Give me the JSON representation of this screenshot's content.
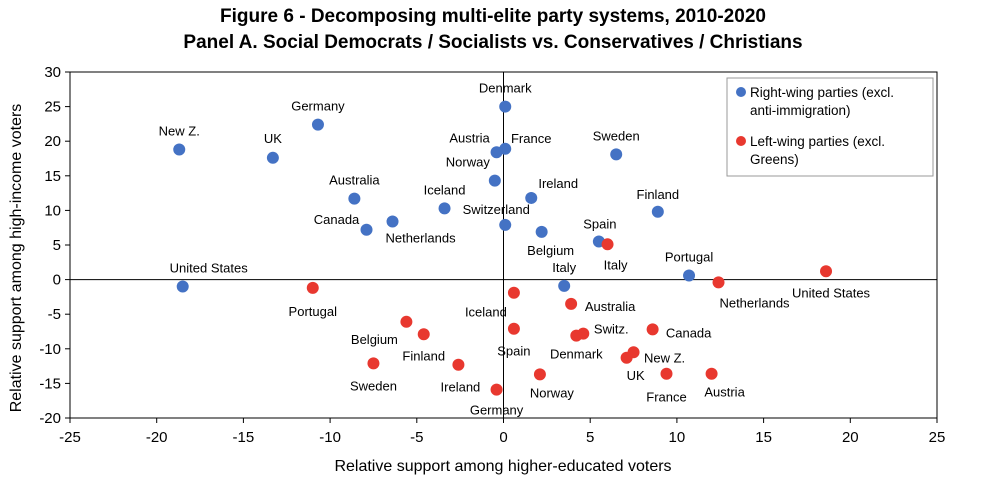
{
  "chart_data": {
    "type": "scatter",
    "title": "Figure 6 - Decomposing multi-elite party systems, 2010-2020",
    "subtitle": "Panel A. Social Democrats / Socialists vs. Conservatives / Christians",
    "xlabel": "Relative support among higher-educated voters",
    "ylabel": "Relative support among high-income voters",
    "xlim": [
      -25,
      25
    ],
    "ylim": [
      -20,
      30
    ],
    "xticks": [
      -25,
      -20,
      -15,
      -10,
      -5,
      0,
      5,
      10,
      15,
      20,
      25
    ],
    "yticks": [
      -20,
      -15,
      -10,
      -5,
      0,
      5,
      10,
      15,
      20,
      25,
      30
    ],
    "grid": false,
    "legend_position": "top-right",
    "series": [
      {
        "name": "Right-wing parties (excl. anti-immigration)",
        "legend_lines": [
          "Right-wing parties (excl.",
          "anti-immigration)"
        ],
        "color": "#4472C4",
        "points": [
          {
            "label": "New Z.",
            "x": -18.7,
            "y": 18.8
          },
          {
            "label": "UK",
            "x": -13.3,
            "y": 17.6
          },
          {
            "label": "Germany",
            "x": -10.7,
            "y": 22.4
          },
          {
            "label": "Australia",
            "x": -8.6,
            "y": 11.7
          },
          {
            "label": "Canada",
            "x": -7.9,
            "y": 7.2
          },
          {
            "label": "Netherlands",
            "x": -6.4,
            "y": 8.4
          },
          {
            "label": "Iceland",
            "x": -3.4,
            "y": 10.3
          },
          {
            "label": "Switzerland",
            "x": 0.1,
            "y": 7.9
          },
          {
            "label": "Norway",
            "x": -0.5,
            "y": 14.3
          },
          {
            "label": "Austria",
            "x": -0.4,
            "y": 18.4
          },
          {
            "label": "France",
            "x": 0.1,
            "y": 18.9
          },
          {
            "label": "Denmark",
            "x": 0.1,
            "y": 25.0
          },
          {
            "label": "Ireland",
            "x": 1.6,
            "y": 11.8
          },
          {
            "label": "Belgium",
            "x": 2.2,
            "y": 6.9
          },
          {
            "label": "Spain",
            "x": 5.5,
            "y": 5.5
          },
          {
            "label": "Sweden",
            "x": 6.5,
            "y": 18.1
          },
          {
            "label": "Finland",
            "x": 8.9,
            "y": 9.8
          },
          {
            "label": "Italy",
            "x": 3.5,
            "y": -0.9
          },
          {
            "label": "Portugal",
            "x": 10.7,
            "y": 0.6
          },
          {
            "label": "United States",
            "x": -18.5,
            "y": -1.0
          }
        ]
      },
      {
        "name": "Left-wing parties (excl. Greens)",
        "legend_lines": [
          "Left-wing parties (excl.",
          "Greens)"
        ],
        "color": "#E8382F",
        "points": [
          {
            "label": "Portugal",
            "x": -11.0,
            "y": -1.2
          },
          {
            "label": "Netherlands",
            "x": 12.4,
            "y": -0.4
          },
          {
            "label": "United States",
            "x": 18.6,
            "y": 1.2
          },
          {
            "label": "Italy",
            "x": 6.0,
            "y": 5.1
          },
          {
            "label": "Iceland",
            "x": 0.6,
            "y": -1.9
          },
          {
            "label": "Australia",
            "x": 3.9,
            "y": -3.5
          },
          {
            "label": "Switz.",
            "x": 4.6,
            "y": -7.8
          },
          {
            "label": "Denmark",
            "x": 4.2,
            "y": -8.1
          },
          {
            "label": "Spain",
            "x": 0.6,
            "y": -7.1
          },
          {
            "label": "Belgium",
            "x": -5.6,
            "y": -6.1
          },
          {
            "label": "Finland",
            "x": -4.6,
            "y": -7.9
          },
          {
            "label": "Sweden",
            "x": -7.5,
            "y": -12.1
          },
          {
            "label": "Ireland",
            "x": -2.6,
            "y": -12.3
          },
          {
            "label": "Germany",
            "x": -0.4,
            "y": -15.9
          },
          {
            "label": "Norway",
            "x": 2.1,
            "y": -13.7
          },
          {
            "label": "Canada",
            "x": 8.6,
            "y": -7.2
          },
          {
            "label": "New Z.",
            "x": 7.5,
            "y": -10.5
          },
          {
            "label": "UK",
            "x": 7.1,
            "y": -11.3
          },
          {
            "label": "France",
            "x": 9.4,
            "y": -13.6
          },
          {
            "label": "Austria",
            "x": 12.0,
            "y": -13.6
          }
        ]
      }
    ]
  }
}
